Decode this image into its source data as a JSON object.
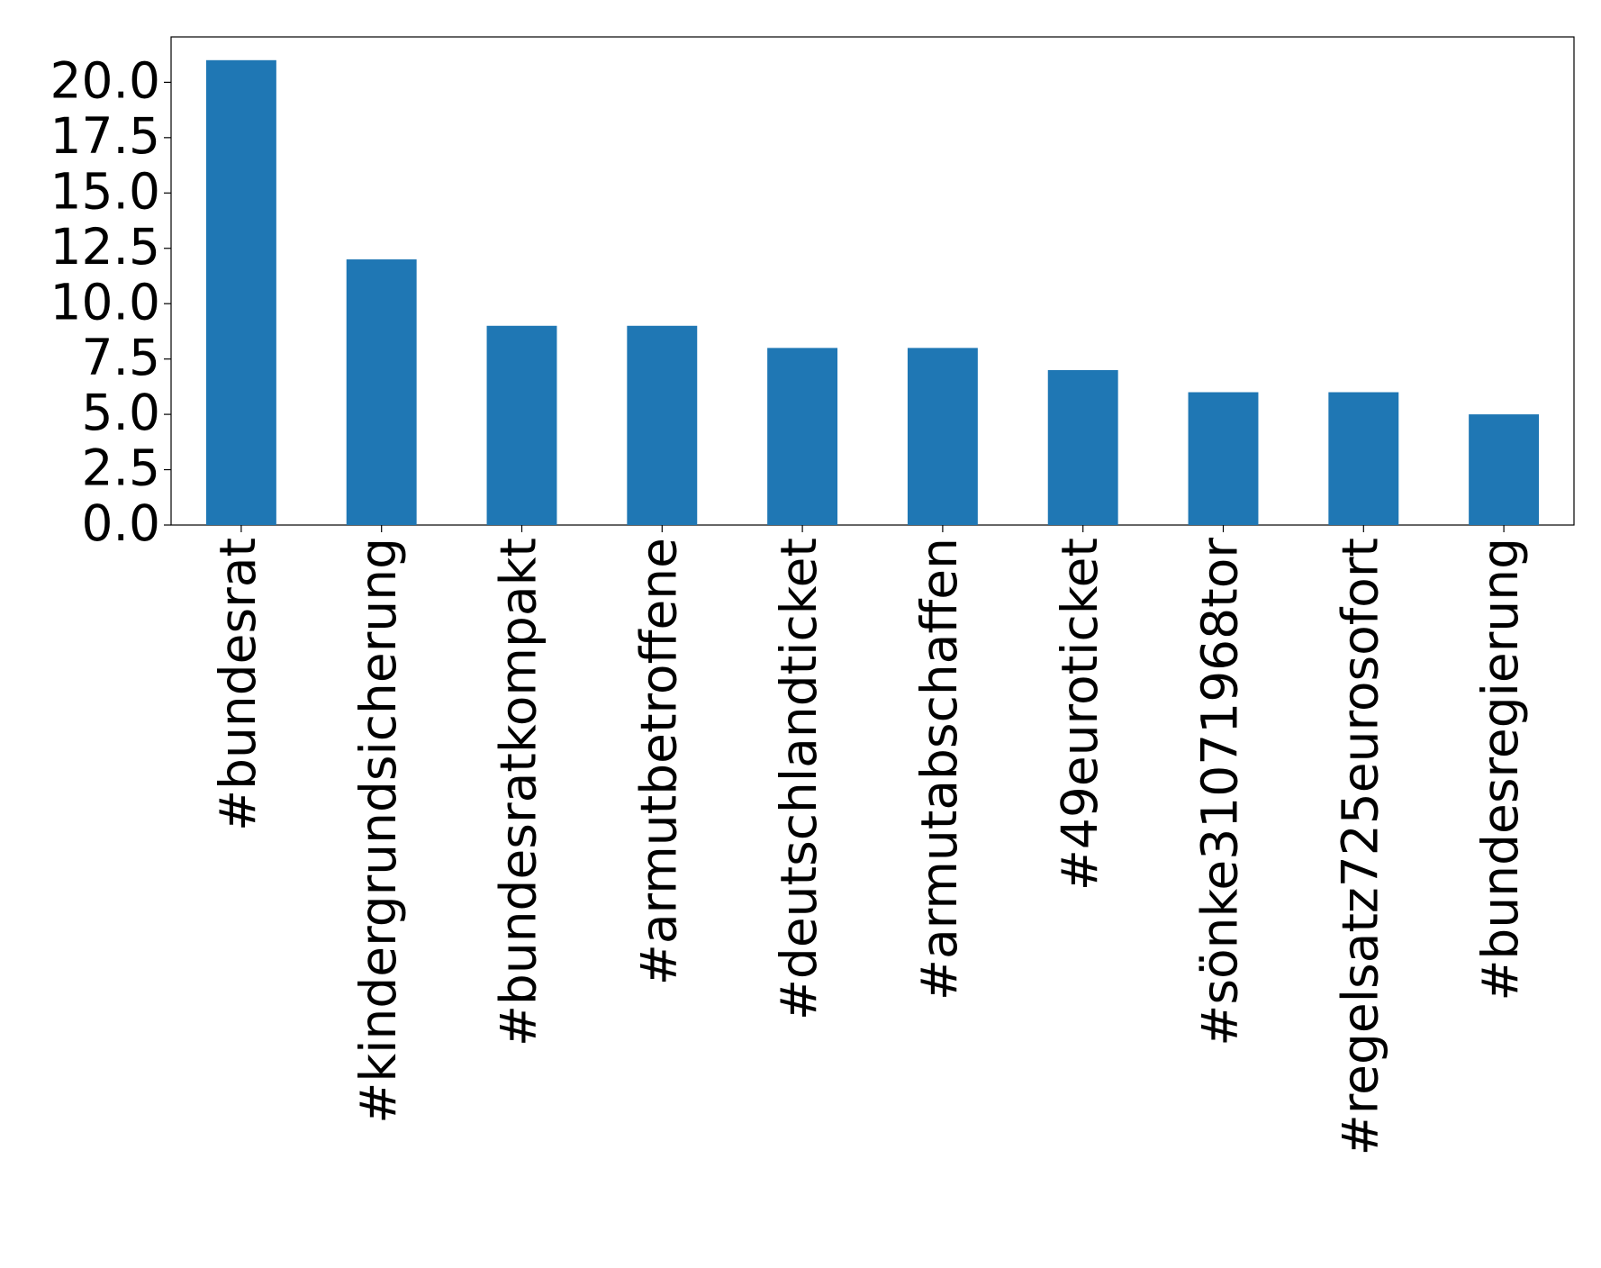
{
  "chart_data": {
    "type": "bar",
    "categories": [
      "#bundesrat",
      "#kindergrundsicherung",
      "#bundesratkompakt",
      "#armutbetroffene",
      "#deutschlandticket",
      "#armutabschaffen",
      "#49euroticket",
      "#sönke31071968tor",
      "#regelsatz725eurosofort",
      "#bundesregierung"
    ],
    "values": [
      21,
      12,
      9,
      9,
      8,
      8,
      7,
      6,
      6,
      5
    ],
    "color": "#1f77b4",
    "ylim": [
      0,
      22.05
    ],
    "yticks": [
      {
        "value": 0,
        "label": "0.0"
      },
      2.5,
      {
        "value": 5,
        "label": "5.0"
      },
      7.5,
      {
        "value": 10,
        "label": "10.0"
      },
      12.5,
      {
        "value": 15,
        "label": "15.0"
      },
      17.5,
      {
        "value": 20,
        "label": "20.0"
      }
    ],
    "grid": false
  }
}
